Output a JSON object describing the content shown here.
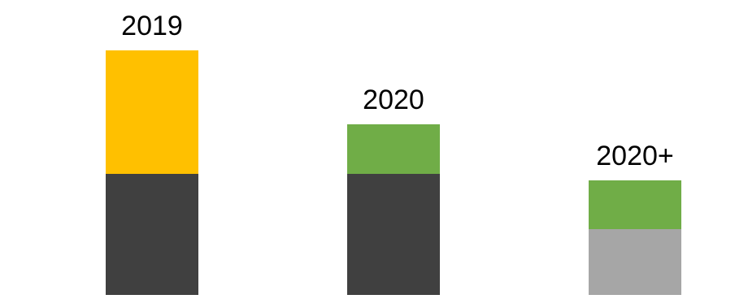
{
  "chart_data": {
    "type": "bar",
    "stacked": true,
    "categories": [
      "2019",
      "2020",
      "2020+"
    ],
    "segments": [
      [
        {
          "value": 149,
          "color": "#404040"
        },
        {
          "value": 152,
          "color": "#FFC000"
        }
      ],
      [
        {
          "value": 149,
          "color": "#404040"
        },
        {
          "value": 61,
          "color": "#70AD47"
        }
      ],
      [
        {
          "value": 81,
          "color": "#A6A6A6"
        },
        {
          "value": 60,
          "color": "#70AD47"
        }
      ]
    ],
    "ylim": [
      0,
      301
    ],
    "grid": false,
    "legend": false
  }
}
